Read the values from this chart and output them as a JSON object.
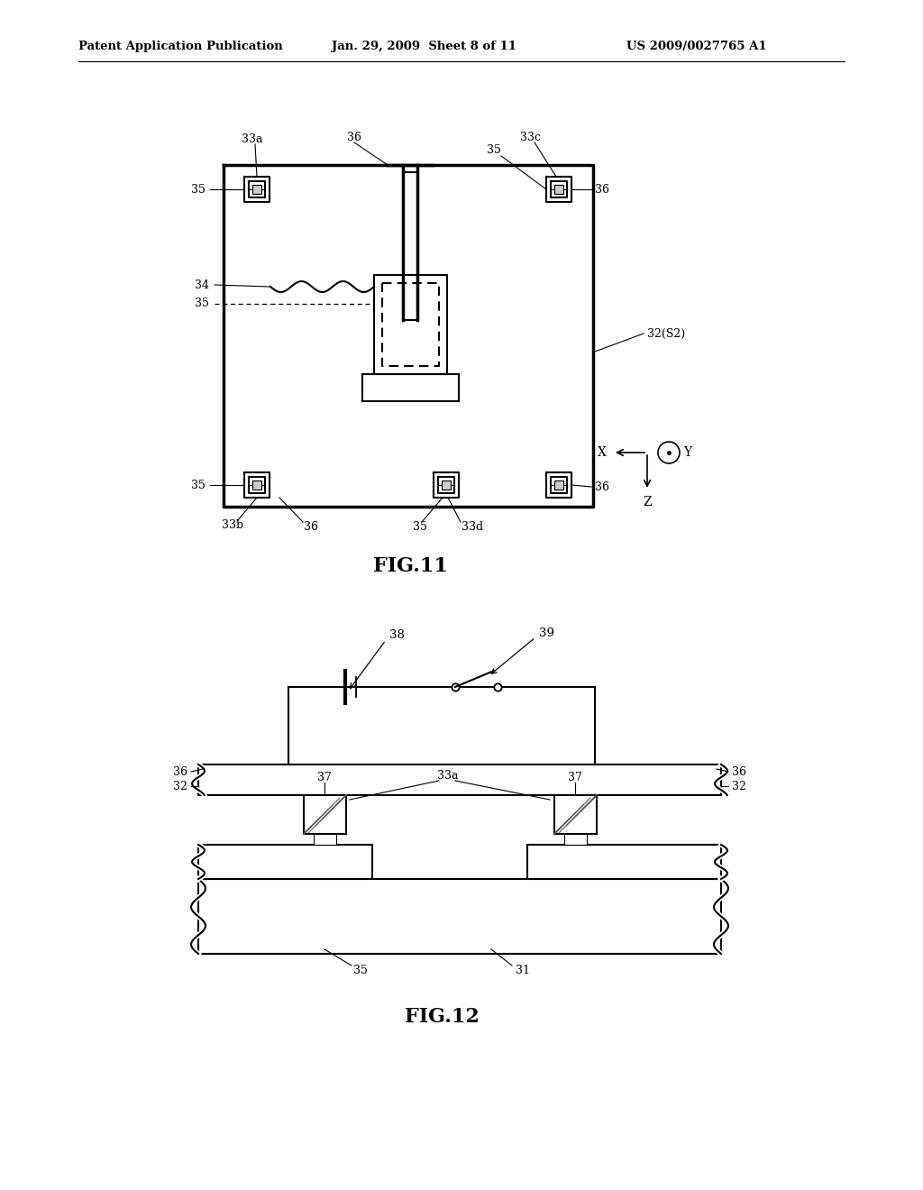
{
  "bg": "#ffffff",
  "lc": "#000000",
  "header_left": "Patent Application Publication",
  "header_mid": "Jan. 29, 2009  Sheet 8 of 11",
  "header_right": "US 2009/0027765 A1",
  "fig11_caption": "FIG.11",
  "fig12_caption": "FIG.12",
  "lw": 1.5,
  "tlw": 2.5
}
